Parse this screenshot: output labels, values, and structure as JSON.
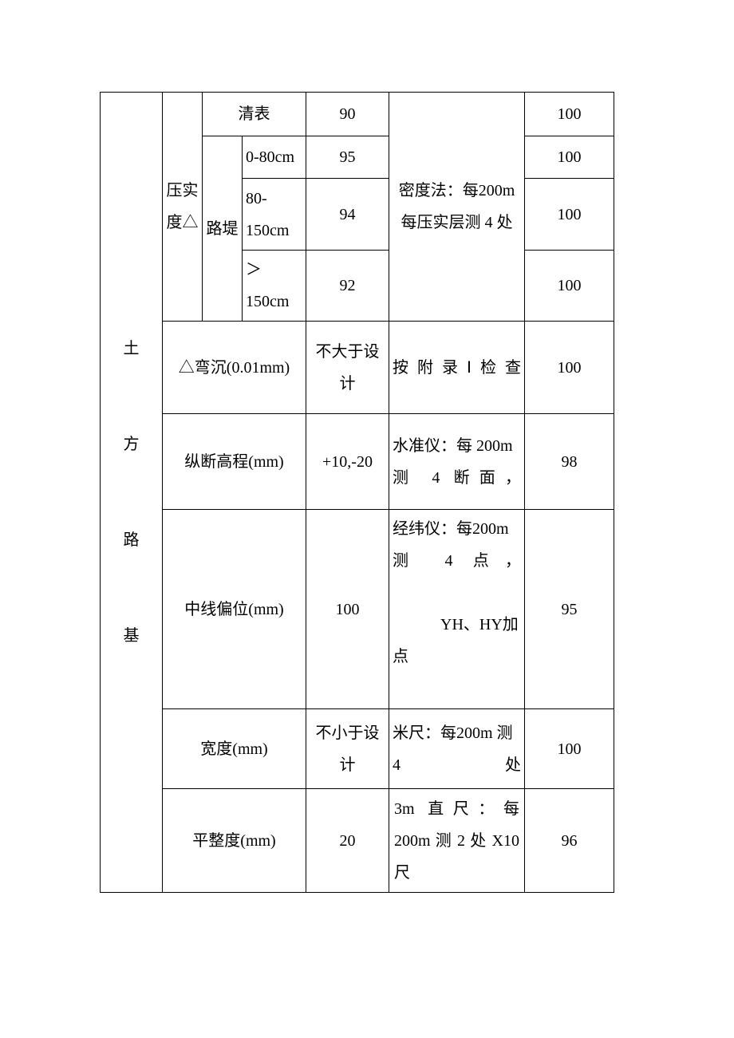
{
  "table": {
    "category": "土\n\n方\n\n路\n\n基",
    "compaction_label": "压实度△",
    "surface_clear": "清表",
    "embankment_label": "路堤",
    "depth_0_80": "0-80cm",
    "depth_80_150": "80-150cm",
    "depth_gt_150": "＞150cm",
    "val_90": "90",
    "val_95": "95",
    "val_94": "94",
    "val_92": "92",
    "density_method": "密度法：每200m 每压实层测 4 处",
    "last_100_a": "100",
    "last_100_b": "100",
    "last_100_c": "100",
    "last_100_d": "100",
    "deflection_label": "△弯沉(0.01mm)",
    "deflection_val": "不大于设计",
    "deflection_method": "按附录Ⅰ检查",
    "deflection_last": "100",
    "vprofile_label": "纵断高程(mm)",
    "vprofile_val": "+10,-20",
    "vprofile_method": "水准仪：每 200m测 4 断面，",
    "vprofile_last": "98",
    "centerline_label": "中线偏位(mm)",
    "centerline_val": "100",
    "centerline_method": "经纬仪：每200m 测 4 点，\n\n   YH、HY加点",
    "centerline_last": "95",
    "width_label": "宽度(mm)",
    "width_val": "不小于设计",
    "width_method": "米尺：每200m 测 4 处",
    "width_last": "100",
    "flatness_label": "平整度(mm)",
    "flatness_val": "20",
    "flatness_method": "3m 直尺：每 200m 测 2 处 X10 尺",
    "flatness_last": "96"
  },
  "style": {
    "font_family": "SimSun",
    "font_size_pt": 15,
    "border_color": "#000000",
    "text_color": "#000000",
    "background": "#ffffff"
  }
}
